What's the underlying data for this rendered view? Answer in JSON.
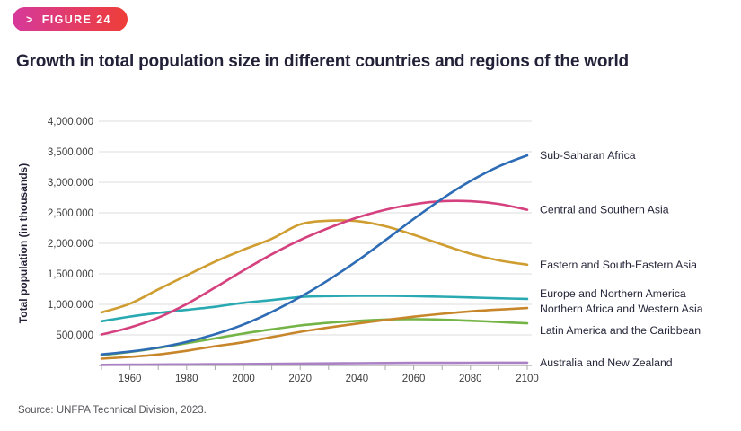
{
  "badge": {
    "chevron": ">",
    "label": "FIGURE 24",
    "gradient_left": "#d6399b",
    "gradient_right": "#ee3e38"
  },
  "title": "Growth in total population size in different countries and regions of the world",
  "source": "Source: UNFPA Technical Division, 2023.",
  "chart_data": {
    "type": "line",
    "title": "Growth in total population size in different countries and regions of the world",
    "xlabel": "",
    "ylabel": "Total population (in thousands)",
    "xlim": [
      1950,
      2100
    ],
    "ylim": [
      0,
      4000000
    ],
    "y_tick_step": 500000,
    "y_tick_labels": [
      "500,000",
      "1,000,000",
      "1,500,000",
      "2,000,000",
      "2,500,000",
      "3,000,000",
      "3,500,000",
      "4,000,000"
    ],
    "x_major_ticks": [
      1960,
      1980,
      2000,
      2020,
      2040,
      2060,
      2080,
      2100
    ],
    "x_minor_tick_step": 10,
    "grid": "horizontal",
    "legend_position": "right-of-line-ends",
    "x": [
      1950,
      1960,
      1970,
      1980,
      1990,
      2000,
      2010,
      2020,
      2030,
      2040,
      2050,
      2060,
      2070,
      2080,
      2090,
      2100
    ],
    "series": [
      {
        "name": "Sub-Saharan Africa",
        "color": "#2d6cb5",
        "values": [
          181000,
          227000,
          292000,
          385000,
          512000,
          670000,
          877000,
          1120000,
          1400000,
          1710000,
          2050000,
          2400000,
          2730000,
          3020000,
          3260000,
          3440000
        ]
      },
      {
        "name": "Central and Southern Asia",
        "color": "#d5417f",
        "values": [
          506000,
          622000,
          783000,
          1005000,
          1275000,
          1555000,
          1820000,
          2055000,
          2250000,
          2420000,
          2550000,
          2640000,
          2690000,
          2690000,
          2645000,
          2550000
        ]
      },
      {
        "name": "Eastern and South-Eastern Asia",
        "color": "#cf9d30",
        "values": [
          867000,
          1010000,
          1245000,
          1475000,
          1700000,
          1895000,
          2075000,
          2310000,
          2370000,
          2365000,
          2280000,
          2140000,
          1980000,
          1830000,
          1720000,
          1650000
        ]
      },
      {
        "name": "Europe and Northern America",
        "color": "#29a9b1",
        "values": [
          723000,
          800000,
          860000,
          910000,
          960000,
          1025000,
          1070000,
          1120000,
          1135000,
          1140000,
          1140000,
          1135000,
          1125000,
          1113000,
          1100000,
          1090000
        ]
      },
      {
        "name": "Northern Africa and Western Asia",
        "color": "#c8862b",
        "values": [
          110000,
          140000,
          180000,
          240000,
          315000,
          380000,
          465000,
          550000,
          620000,
          685000,
          745000,
          798000,
          845000,
          885000,
          915000,
          940000
        ]
      },
      {
        "name": "Latin America and the Caribbean",
        "color": "#74b345",
        "values": [
          169000,
          220000,
          287000,
          364000,
          443000,
          522000,
          591000,
          654000,
          698000,
          730000,
          752000,
          758000,
          750000,
          733000,
          712000,
          690000
        ]
      },
      {
        "name": "Australia and New Zealand",
        "color": "#a981c4",
        "values": [
          10000,
          13000,
          16000,
          18000,
          20000,
          23000,
          27000,
          31000,
          34000,
          37000,
          40000,
          42000,
          43000,
          44000,
          45000,
          45000
        ]
      }
    ]
  }
}
